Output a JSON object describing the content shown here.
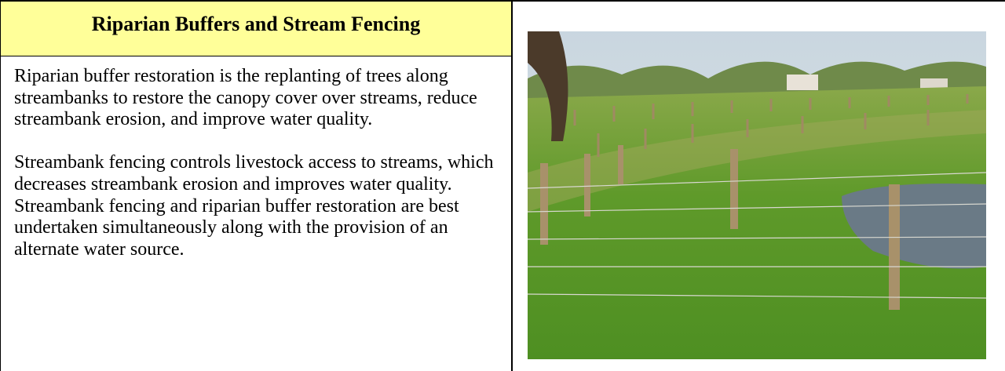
{
  "header": {
    "title": "Riparian Buffers and Stream Fencing"
  },
  "body": {
    "paragraphs": [
      "Riparian buffer restoration is the replanting of trees along streambanks to restore the canopy cover over streams, reduce streambank erosion, and improve water quality.",
      "Streambank fencing controls livestock access to streams, which decreases streambank erosion and improves water quality. Streambank fencing and riparian buffer restoration are best undertaken simultaneously along with the provision of an alternate water source."
    ]
  }
}
